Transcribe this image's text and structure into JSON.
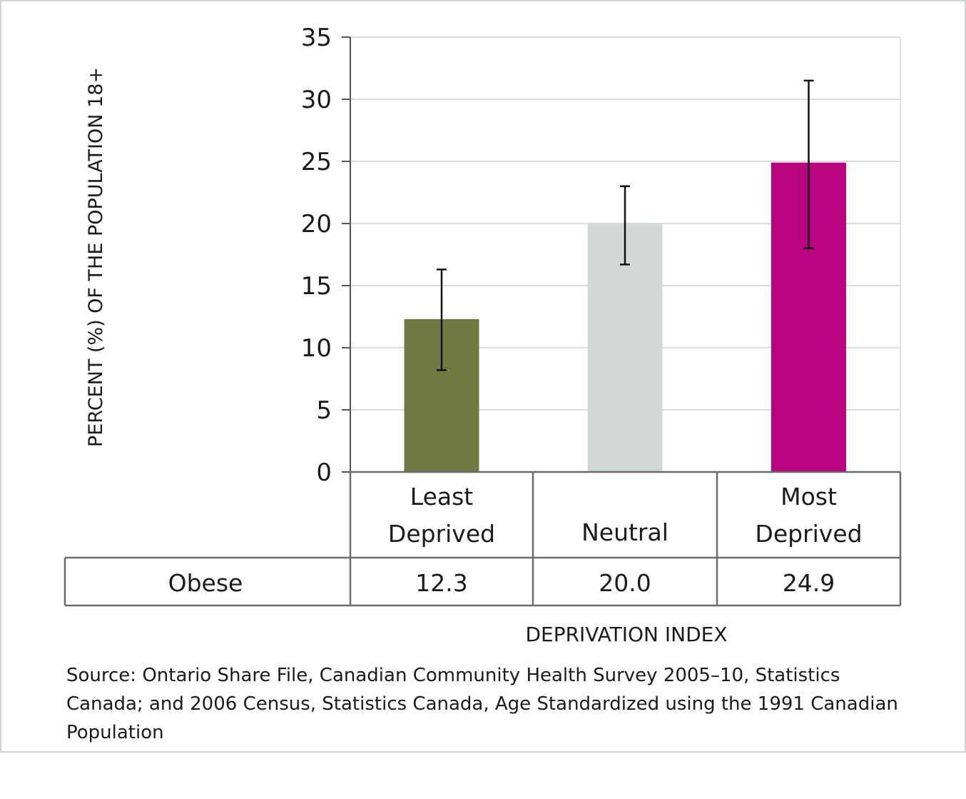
{
  "chart_data": {
    "type": "bar",
    "categories": [
      [
        "Least",
        "Deprived"
      ],
      [
        "Neutral"
      ],
      [
        "Most",
        "Deprived"
      ]
    ],
    "series": [
      {
        "name": "Obese",
        "values": [
          12.3,
          20.0,
          24.9
        ],
        "value_labels": [
          "12.3",
          "20.0",
          "24.9"
        ],
        "error_low": [
          8.2,
          16.7,
          18.0
        ],
        "error_high": [
          16.3,
          23.0,
          31.5
        ],
        "colors": [
          "#727841",
          "#d1d8d6",
          "#b8037f"
        ]
      }
    ],
    "ylabel": "PERCENT (%) OF  THE POPULATION 18+",
    "xlabel": "DEPRIVATION INDEX",
    "ylim": [
      0,
      35
    ],
    "yticks": [
      0,
      5,
      10,
      15,
      20,
      25,
      30,
      35
    ],
    "grid": true,
    "legend": "none",
    "data_table": true
  },
  "source": "Source: Ontario Share File, Canadian Community Health Survey 2005–10, Statistics Canada; and 2006 Census, Statistics Canada, Age Standardized using the 1991 Canadian Population"
}
